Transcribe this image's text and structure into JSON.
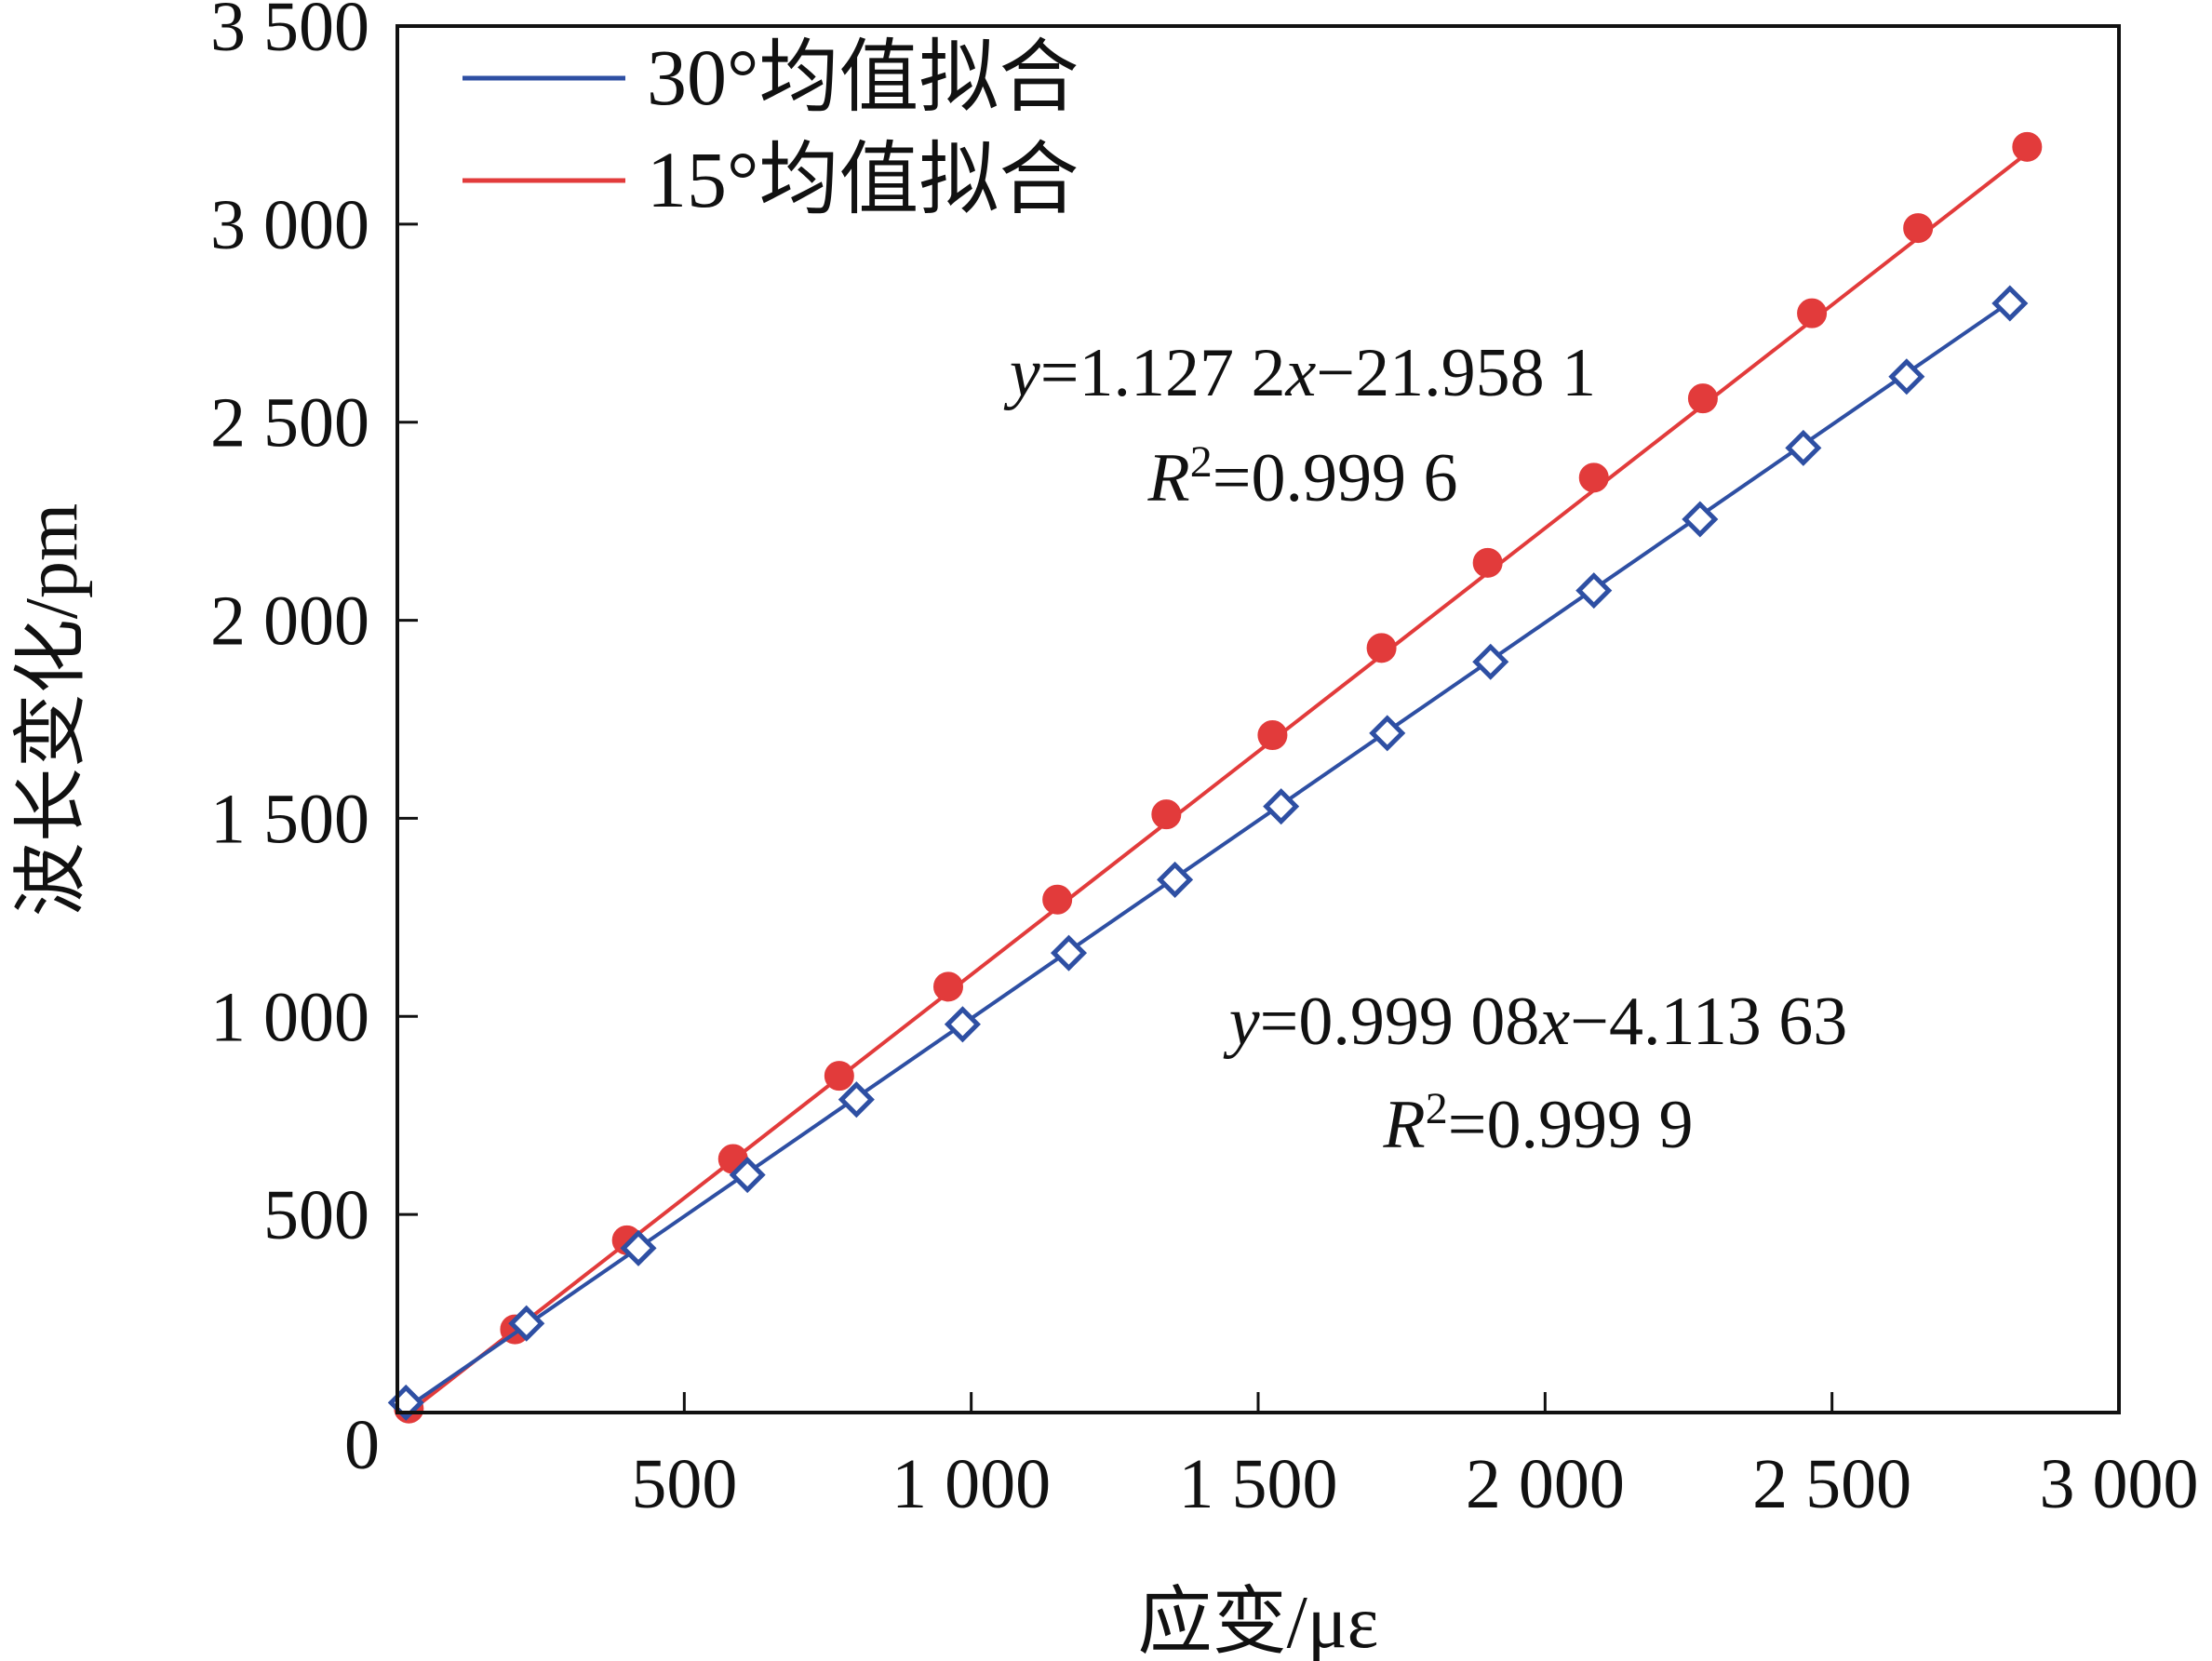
{
  "chart_data": {
    "type": "scatter",
    "xlabel": "应变/με",
    "ylabel": "波长变化/pm",
    "xlim": [
      0,
      3000
    ],
    "ylim": [
      0,
      3500
    ],
    "x_ticks": [
      500,
      1000,
      1500,
      2000,
      2500,
      3000
    ],
    "x_tick_labels": [
      "500",
      "1 000",
      "1 500",
      "2 000",
      "2 500",
      "3 000"
    ],
    "y_ticks": [
      500,
      1000,
      1500,
      2000,
      2500,
      3000,
      3500
    ],
    "y_tick_labels": [
      "500",
      "1 000",
      "1 500",
      "2 000",
      "2 500",
      "3 000",
      "3 500"
    ],
    "origin_label": "0",
    "grid": false,
    "legend_position": "top-left",
    "series": [
      {
        "name": "30°均值拟合",
        "color": "#2e4fa3",
        "marker": "diamond-open",
        "fit": {
          "slope": 0.99908,
          "intercept": -4.11363
        },
        "x": [
          15,
          225,
          420,
          610,
          800,
          985,
          1170,
          1355,
          1540,
          1725,
          1905,
          2085,
          2270,
          2450,
          2630,
          2810
        ],
        "y": [
          25,
          225,
          415,
          600,
          790,
          980,
          1160,
          1345,
          1530,
          1715,
          1895,
          2075,
          2255,
          2435,
          2615,
          2800
        ]
      },
      {
        "name": "15°均值拟合",
        "color": "#e23b3b",
        "marker": "circle-filled",
        "fit": {
          "slope": 1.1272,
          "intercept": -21.9581
        },
        "x": [
          20,
          205,
          400,
          585,
          770,
          960,
          1150,
          1340,
          1525,
          1715,
          1900,
          2085,
          2275,
          2465,
          2650,
          2840
        ],
        "y": [
          10,
          210,
          435,
          640,
          850,
          1075,
          1295,
          1510,
          1710,
          1930,
          2145,
          2360,
          2560,
          2775,
          2990,
          3195
        ]
      }
    ],
    "annotations": [
      {
        "equation_y": "y",
        "equation_rest": "=1.127 2",
        "equation_x": "x",
        "equation_tail": "−21.958 1",
        "r2_r": "R",
        "r2_sup": "2",
        "r2_value": "=0.999 6"
      },
      {
        "equation_y": "y",
        "equation_rest": "=0.999 08",
        "equation_x": "x",
        "equation_tail": "−4.113 63",
        "r2_r": "R",
        "r2_sup": "2",
        "r2_value": "=0.999 9"
      }
    ]
  }
}
